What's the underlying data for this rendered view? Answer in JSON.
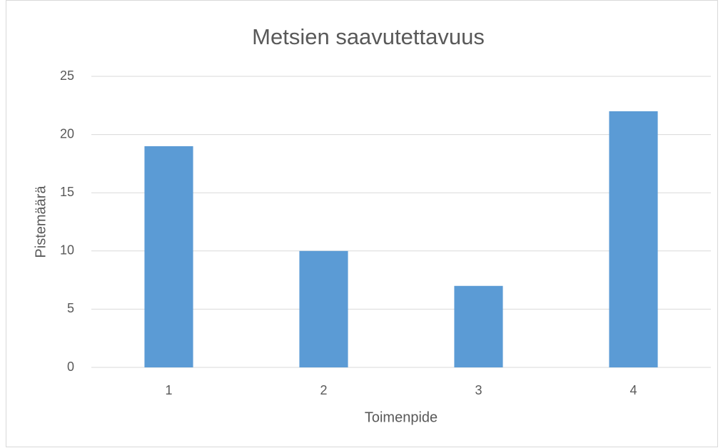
{
  "chart_data": {
    "type": "bar",
    "title": "Metsien saavutettavuus",
    "x_label": "Toimenpide",
    "y_label": "Pistemäärä",
    "categories": [
      "1",
      "2",
      "3",
      "4"
    ],
    "values": [
      19,
      10,
      7,
      22
    ],
    "color": "#5b9bd5",
    "ylim": [
      0,
      25
    ],
    "yticks": [
      0,
      5,
      10,
      15,
      20,
      25
    ],
    "grid": true
  }
}
